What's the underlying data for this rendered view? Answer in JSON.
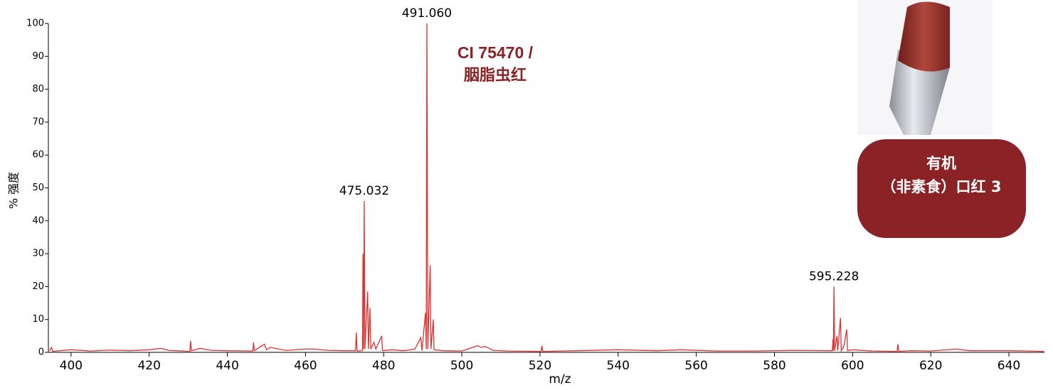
{
  "chart_data": {
    "type": "line",
    "xlabel": "m/z",
    "ylabel": "% 强度",
    "annotation_title": [
      "CI 75470 /",
      "胭脂虫红"
    ],
    "badge": [
      "有机",
      "（非素食）口红 3"
    ],
    "peak_labels": [
      {
        "text": "475.032",
        "x": 475.03,
        "y": 46
      },
      {
        "text": "491.060",
        "x": 491.06,
        "y": 100
      },
      {
        "text": "595.228",
        "x": 595.23,
        "y": 20
      }
    ],
    "xlim": [
      394.2,
      649.1
    ],
    "ylim": [
      0,
      100
    ],
    "xticks": [
      400,
      420,
      440,
      460,
      480,
      500,
      520,
      540,
      560,
      580,
      600,
      620,
      640
    ],
    "yticks": [
      0,
      10,
      20,
      30,
      40,
      50,
      60,
      70,
      80,
      90,
      100
    ],
    "series": [
      {
        "color": "#e03030",
        "x": [
          394.5,
          395,
          395.3,
          400,
          405,
          410,
          415,
          420,
          423,
          425,
          430.4,
          430.6,
          430.8,
          433,
          436,
          440,
          446.5,
          446.7,
          446.9,
          449.5,
          450,
          451,
          455,
          460,
          462,
          466,
          470,
          472.8,
          473,
          473.2,
          474.6,
          474.7,
          474.85,
          475.03,
          475.2,
          475.9,
          476.1,
          476.5,
          476.7,
          477.5,
          478,
          479.5,
          479.7,
          482,
          485,
          488,
          489.5,
          489.8,
          490.7,
          490.9,
          491.06,
          491.3,
          491.9,
          492.1,
          492.7,
          492.9,
          495,
          500,
          504,
          505,
          506,
          508,
          512,
          520.3,
          520.5,
          520.7,
          530,
          540,
          550,
          556,
          565,
          575,
          585,
          594.8,
          595,
          595.1,
          595.23,
          595.4,
          596,
          596.2,
          596.9,
          597.1,
          597.8,
          598.5,
          598.7,
          600,
          605,
          611.4,
          611.6,
          611.8,
          615,
          620,
          626.5,
          630,
          640,
          645,
          649
        ],
        "values": [
          0.5,
          1.5,
          0.3,
          0.8,
          0.4,
          0.7,
          0.5,
          0.8,
          1.2,
          0.6,
          0.3,
          3.5,
          0.5,
          1.2,
          0.6,
          0.5,
          0.4,
          3,
          0.5,
          2.5,
          0.8,
          1.5,
          0.6,
          1,
          1,
          0.6,
          0.5,
          0.5,
          6,
          0.4,
          0.5,
          30,
          1,
          46,
          1,
          18.5,
          1,
          13.5,
          1,
          3,
          1,
          5,
          0.5,
          0.8,
          0.5,
          1,
          4.5,
          0.5,
          12,
          1,
          100,
          1,
          26.5,
          1,
          10,
          0.8,
          0.5,
          0.4,
          2,
          1.5,
          1.8,
          0.6,
          0.4,
          0.3,
          2,
          0.3,
          0.5,
          0.8,
          0.5,
          0.8,
          0.4,
          0.4,
          0.6,
          0.5,
          4,
          0.5,
          20,
          0.5,
          5,
          0.5,
          10.5,
          0.5,
          2,
          7,
          0.5,
          0.8,
          0.4,
          0.3,
          2.5,
          0.3,
          0.5,
          0.4,
          1,
          0.5,
          0.5,
          0.4,
          0.3
        ]
      }
    ]
  }
}
